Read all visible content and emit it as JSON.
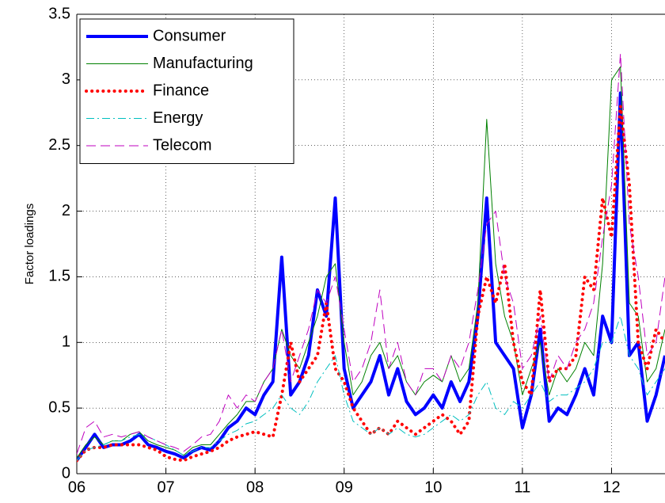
{
  "chart_data": {
    "type": "line",
    "ylabel": "Factor loadings",
    "x": [
      2006.0,
      2006.1,
      2006.2,
      2006.3,
      2006.4,
      2006.5,
      2006.6,
      2006.7,
      2006.8,
      2006.9,
      2007.0,
      2007.1,
      2007.2,
      2007.3,
      2007.4,
      2007.5,
      2007.6,
      2007.7,
      2007.8,
      2007.9,
      2008.0,
      2008.1,
      2008.2,
      2008.3,
      2008.4,
      2008.5,
      2008.6,
      2008.7,
      2008.8,
      2008.9,
      2009.0,
      2009.1,
      2009.2,
      2009.3,
      2009.4,
      2009.5,
      2009.6,
      2009.7,
      2009.8,
      2009.9,
      2010.0,
      2010.1,
      2010.2,
      2010.3,
      2010.4,
      2010.5,
      2010.6,
      2010.7,
      2010.8,
      2010.9,
      2011.0,
      2011.1,
      2011.2,
      2011.3,
      2011.4,
      2011.5,
      2011.6,
      2011.7,
      2011.8,
      2011.9,
      2012.0,
      2012.1,
      2012.2,
      2012.3,
      2012.4,
      2012.5,
      2012.6
    ],
    "series": [
      {
        "name": "Consumer",
        "color": "#0000ff",
        "linewidth": 4,
        "linestyle": "solid",
        "values": [
          0.1,
          0.2,
          0.3,
          0.2,
          0.22,
          0.22,
          0.25,
          0.3,
          0.22,
          0.2,
          0.17,
          0.15,
          0.12,
          0.17,
          0.2,
          0.18,
          0.25,
          0.35,
          0.4,
          0.5,
          0.45,
          0.6,
          0.7,
          1.65,
          0.6,
          0.7,
          0.9,
          1.4,
          1.2,
          2.1,
          0.8,
          0.5,
          0.6,
          0.7,
          0.9,
          0.6,
          0.8,
          0.55,
          0.45,
          0.5,
          0.6,
          0.5,
          0.7,
          0.55,
          0.7,
          1.2,
          2.1,
          1.0,
          0.9,
          0.8,
          0.35,
          0.6,
          1.1,
          0.4,
          0.5,
          0.45,
          0.6,
          0.8,
          0.6,
          1.2,
          1.0,
          2.9,
          0.9,
          1.0,
          0.4,
          0.6,
          0.9
        ]
      },
      {
        "name": "Manufacturing",
        "color": "#008000",
        "linewidth": 1,
        "linestyle": "solid",
        "values": [
          0.12,
          0.22,
          0.28,
          0.22,
          0.25,
          0.25,
          0.3,
          0.32,
          0.25,
          0.22,
          0.2,
          0.18,
          0.14,
          0.2,
          0.22,
          0.22,
          0.3,
          0.38,
          0.45,
          0.55,
          0.55,
          0.7,
          0.8,
          1.1,
          0.9,
          0.8,
          1.0,
          1.2,
          1.5,
          1.6,
          1.0,
          0.6,
          0.7,
          0.9,
          1.0,
          0.8,
          0.9,
          0.7,
          0.6,
          0.7,
          0.75,
          0.7,
          0.9,
          0.7,
          0.8,
          1.3,
          2.7,
          1.6,
          1.2,
          1.0,
          0.6,
          0.8,
          1.0,
          0.6,
          0.8,
          0.7,
          0.8,
          1.0,
          0.9,
          1.6,
          3.0,
          3.1,
          1.3,
          1.2,
          0.7,
          0.8,
          1.1
        ]
      },
      {
        "name": "Finance",
        "color": "#ff0000",
        "linewidth": 4,
        "linestyle": "dotted",
        "values": [
          0.1,
          0.18,
          0.2,
          0.2,
          0.22,
          0.22,
          0.22,
          0.22,
          0.2,
          0.18,
          0.13,
          0.11,
          0.1,
          0.13,
          0.15,
          0.17,
          0.2,
          0.25,
          0.28,
          0.3,
          0.32,
          0.3,
          0.28,
          0.6,
          1.0,
          0.7,
          0.8,
          0.9,
          1.3,
          0.8,
          0.7,
          0.5,
          0.4,
          0.3,
          0.35,
          0.3,
          0.4,
          0.35,
          0.3,
          0.35,
          0.4,
          0.45,
          0.4,
          0.3,
          0.4,
          1.2,
          1.5,
          1.3,
          1.6,
          1.0,
          0.7,
          0.6,
          1.4,
          0.7,
          0.8,
          0.8,
          0.9,
          1.5,
          1.4,
          2.1,
          1.8,
          2.8,
          2.2,
          1.0,
          0.8,
          1.1,
          1.0
        ]
      },
      {
        "name": "Energy",
        "color": "#00bfbf",
        "linewidth": 1,
        "linestyle": "dashdot",
        "values": [
          0.1,
          0.18,
          0.2,
          0.22,
          0.25,
          0.25,
          0.28,
          0.3,
          0.28,
          0.25,
          0.22,
          0.18,
          0.14,
          0.17,
          0.2,
          0.2,
          0.25,
          0.3,
          0.33,
          0.38,
          0.4,
          0.45,
          0.5,
          0.6,
          0.5,
          0.45,
          0.55,
          0.7,
          0.8,
          0.9,
          0.6,
          0.4,
          0.35,
          0.3,
          0.35,
          0.3,
          0.35,
          0.3,
          0.28,
          0.3,
          0.35,
          0.4,
          0.45,
          0.4,
          0.45,
          0.6,
          0.7,
          0.5,
          0.45,
          0.55,
          0.5,
          0.6,
          0.7,
          0.55,
          0.6,
          0.6,
          0.65,
          0.7,
          0.8,
          1.0,
          1.0,
          1.2,
          0.9,
          0.8,
          0.6,
          0.7,
          0.8
        ]
      },
      {
        "name": "Telecom",
        "color": "#bf00bf",
        "linewidth": 1,
        "linestyle": "dashed",
        "values": [
          0.15,
          0.35,
          0.4,
          0.28,
          0.3,
          0.28,
          0.3,
          0.32,
          0.28,
          0.25,
          0.22,
          0.2,
          0.17,
          0.22,
          0.28,
          0.3,
          0.4,
          0.6,
          0.5,
          0.6,
          0.55,
          0.7,
          0.8,
          1.1,
          0.7,
          0.9,
          1.1,
          1.4,
          1.3,
          1.5,
          1.1,
          0.7,
          0.8,
          1.0,
          1.4,
          0.8,
          1.0,
          0.7,
          0.6,
          0.8,
          0.8,
          0.7,
          0.9,
          0.8,
          1.0,
          1.4,
          1.9,
          2.0,
          1.5,
          1.3,
          0.8,
          0.9,
          1.2,
          0.7,
          0.9,
          0.8,
          1.0,
          1.1,
          1.3,
          1.8,
          2.2,
          3.2,
          1.9,
          1.5,
          0.9,
          1.0,
          1.5
        ]
      }
    ],
    "xlim": [
      2006,
      2012.6
    ],
    "xticks": [
      {
        "value": 2006,
        "label": "06"
      },
      {
        "value": 2007,
        "label": "07"
      },
      {
        "value": 2008,
        "label": "08"
      },
      {
        "value": 2009,
        "label": "09"
      },
      {
        "value": 2010,
        "label": "10"
      },
      {
        "value": 2011,
        "label": "11"
      },
      {
        "value": 2012,
        "label": "12"
      }
    ],
    "ylim": [
      0,
      3.5
    ],
    "yticks": [
      0,
      0.5,
      1,
      1.5,
      2,
      2.5,
      3,
      3.5
    ],
    "grid": true,
    "legend": "upper-left"
  }
}
